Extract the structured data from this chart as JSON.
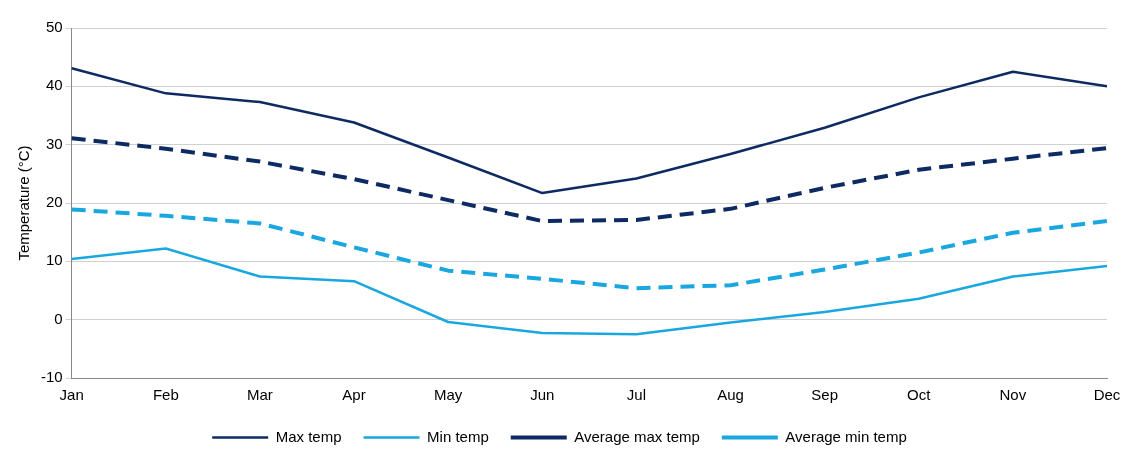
{
  "chart_data": {
    "type": "line",
    "ylabel": "Temperature (°C)",
    "categories": [
      "Jan",
      "Feb",
      "Mar",
      "Apr",
      "May",
      "Jun",
      "Jul",
      "Aug",
      "Sep",
      "Oct",
      "Nov",
      "Dec"
    ],
    "series": [
      {
        "name": "Max temp",
        "color": "#0e2a63",
        "line_style": "solid",
        "values": [
          43.1,
          38.8,
          37.3,
          33.8,
          27.8,
          21.7,
          24.2,
          28.4,
          32.9,
          38.1,
          42.5,
          40.0
        ]
      },
      {
        "name": "Min temp",
        "color": "#1aa7e0",
        "line_style": "solid",
        "values": [
          10.4,
          12.2,
          7.4,
          6.6,
          -0.4,
          -2.3,
          -2.5,
          -0.5,
          1.3,
          3.6,
          7.4,
          9.2
        ]
      },
      {
        "name": "Average max temp",
        "color": "#0e2a63",
        "line_style": "dashed",
        "values": [
          31.1,
          29.3,
          27.1,
          24.1,
          20.5,
          16.9,
          17.1,
          19.0,
          22.6,
          25.7,
          27.6,
          29.4
        ]
      },
      {
        "name": "Average min temp",
        "color": "#1aa7e0",
        "line_style": "dashed",
        "values": [
          18.9,
          17.8,
          16.5,
          12.4,
          8.4,
          7.0,
          5.4,
          5.9,
          8.6,
          11.5,
          14.9,
          16.9
        ]
      }
    ],
    "ylim": [
      -10,
      50
    ],
    "yticks": [
      -10,
      0,
      10,
      20,
      30,
      40,
      50
    ],
    "grid": "y",
    "legend": "bottom",
    "marker": "none"
  }
}
